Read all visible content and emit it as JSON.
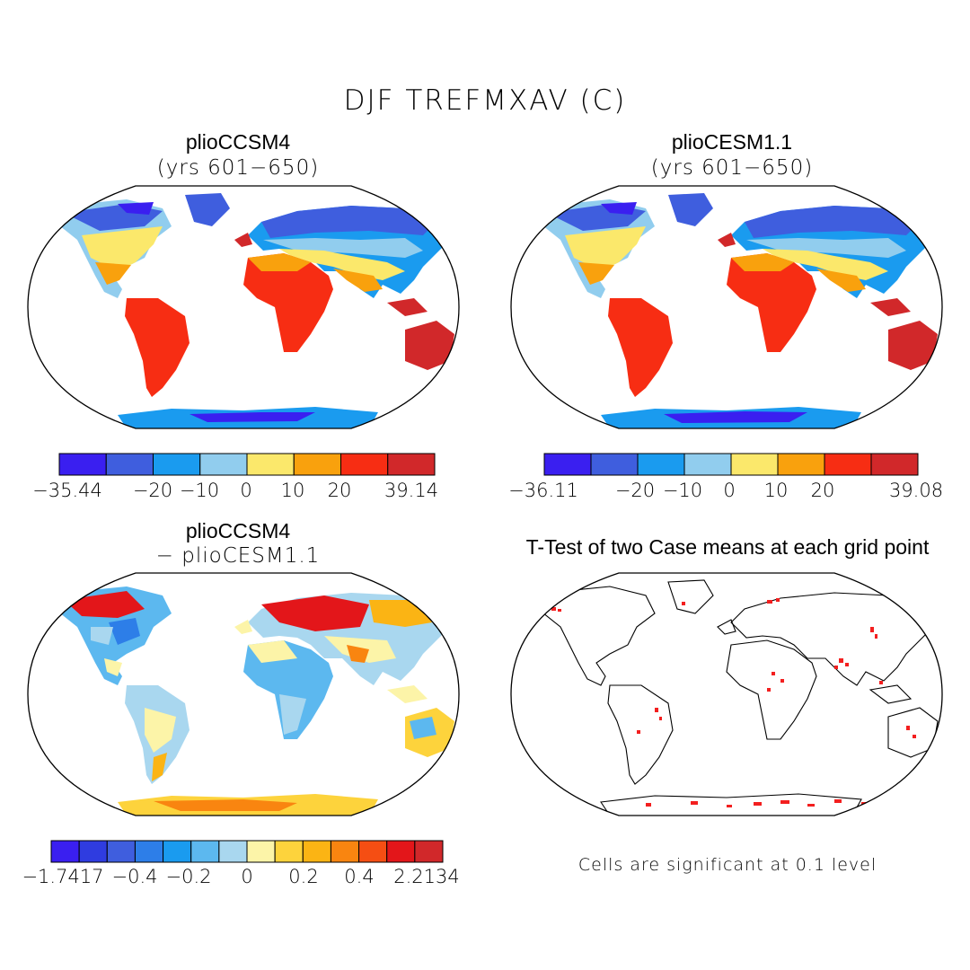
{
  "figure": {
    "title": "DJF TREFMXAV (C)"
  },
  "colors": {
    "abs_scale": [
      "#3a1ff0",
      "#3f5ede",
      "#1a9bef",
      "#91cdee",
      "#fbe86b",
      "#f9a10d",
      "#f72d13",
      "#d1282a"
    ],
    "diff_scale": [
      "#3a1ff0",
      "#2f3ce0",
      "#3f5ede",
      "#2d7ee8",
      "#1a9bef",
      "#5cb8ef",
      "#a9d7ef",
      "#fcf4a8",
      "#fdd33c",
      "#fbb414",
      "#f98510",
      "#f54e13",
      "#e3161a",
      "#d1282a"
    ],
    "ocean": "#ffffff",
    "significant": "#f31f1f"
  },
  "panels": [
    {
      "id": "top-left",
      "title": "plioCCSM4",
      "subtitle": "(yrs 601−650)",
      "colorbar": {
        "min_label": "−35.44",
        "max_label": "39.14",
        "ticks": [
          "−20",
          "−10",
          "0",
          "10",
          "20"
        ]
      }
    },
    {
      "id": "top-right",
      "title": "plioCESM1.1",
      "subtitle": "(yrs 601−650)",
      "colorbar": {
        "min_label": "−36.11",
        "max_label": "39.08",
        "ticks": [
          "−20",
          "−10",
          "0",
          "10",
          "20"
        ]
      }
    },
    {
      "id": "bottom-left",
      "title": "plioCCSM4",
      "subtitle": "− plioCESM1.1",
      "colorbar": {
        "min_label": "−1.7417",
        "max_label": "2.2134",
        "ticks": [
          "−0.4",
          "−0.2",
          "0",
          "0.2",
          "0.4"
        ]
      }
    },
    {
      "id": "bottom-right",
      "title": "T-Test of two Case means at each grid point",
      "note": "Cells are significant at 0.1 level"
    }
  ]
}
